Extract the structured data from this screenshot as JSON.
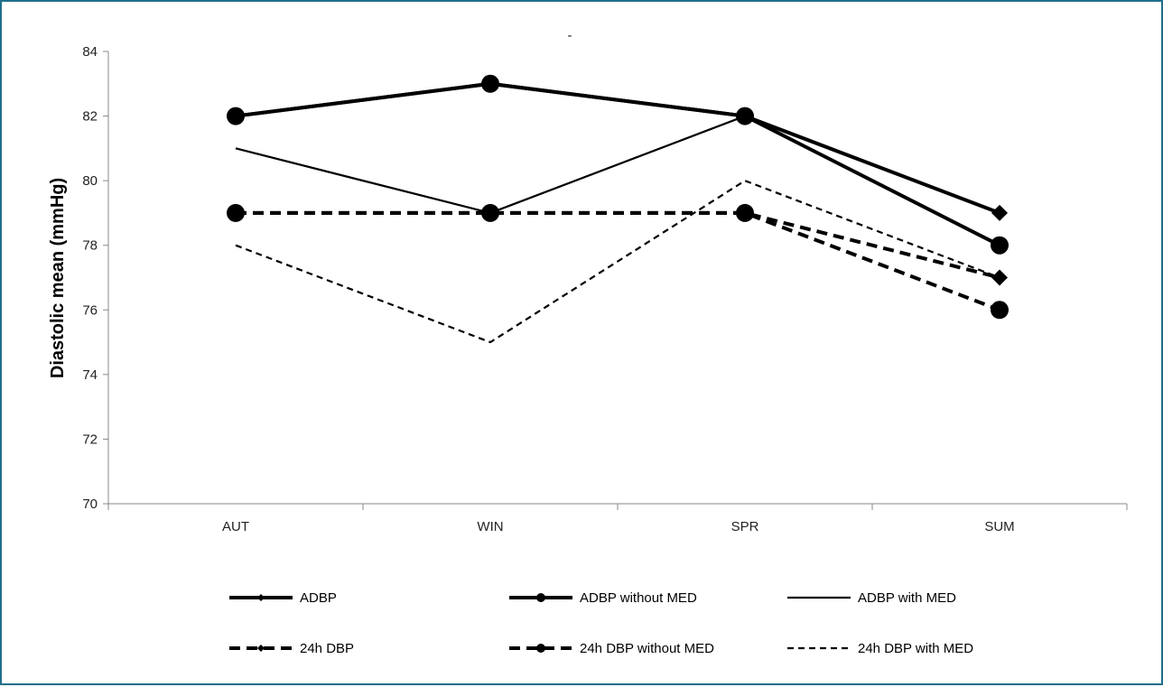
{
  "chart_data": {
    "type": "line",
    "title": "-",
    "ylabel": "Diastolic mean (mmHg)",
    "xlabel": "",
    "categories": [
      "AUT",
      "WIN",
      "SPR",
      "SUM"
    ],
    "ylim": [
      70,
      84
    ],
    "yticks": [
      70,
      72,
      74,
      76,
      78,
      80,
      82,
      84
    ],
    "grid": false,
    "legend_position": "bottom",
    "series": [
      {
        "name": "ADBP",
        "values": [
          82,
          83,
          82,
          79
        ],
        "style": "solid",
        "width": "thick",
        "marker": "diamond"
      },
      {
        "name": "ADBP without MED",
        "values": [
          82,
          83,
          82,
          78
        ],
        "style": "solid",
        "width": "thick",
        "marker": "circle"
      },
      {
        "name": "ADBP with MED",
        "values": [
          81,
          79,
          82,
          78
        ],
        "style": "solid",
        "width": "thin",
        "marker": "none"
      },
      {
        "name": "24h DBP",
        "values": [
          79,
          79,
          79,
          77
        ],
        "style": "dashed",
        "width": "thick",
        "marker": "diamond"
      },
      {
        "name": "24h DBP without MED",
        "values": [
          79,
          79,
          79,
          76
        ],
        "style": "dashed",
        "width": "thick",
        "marker": "circle"
      },
      {
        "name": "24h DBP with MED",
        "values": [
          78,
          75,
          80,
          77
        ],
        "style": "dashed",
        "width": "thin",
        "marker": "none"
      }
    ],
    "colors": {
      "line": "#000000",
      "axis": "#888888",
      "border": "#1f6f8b"
    }
  }
}
